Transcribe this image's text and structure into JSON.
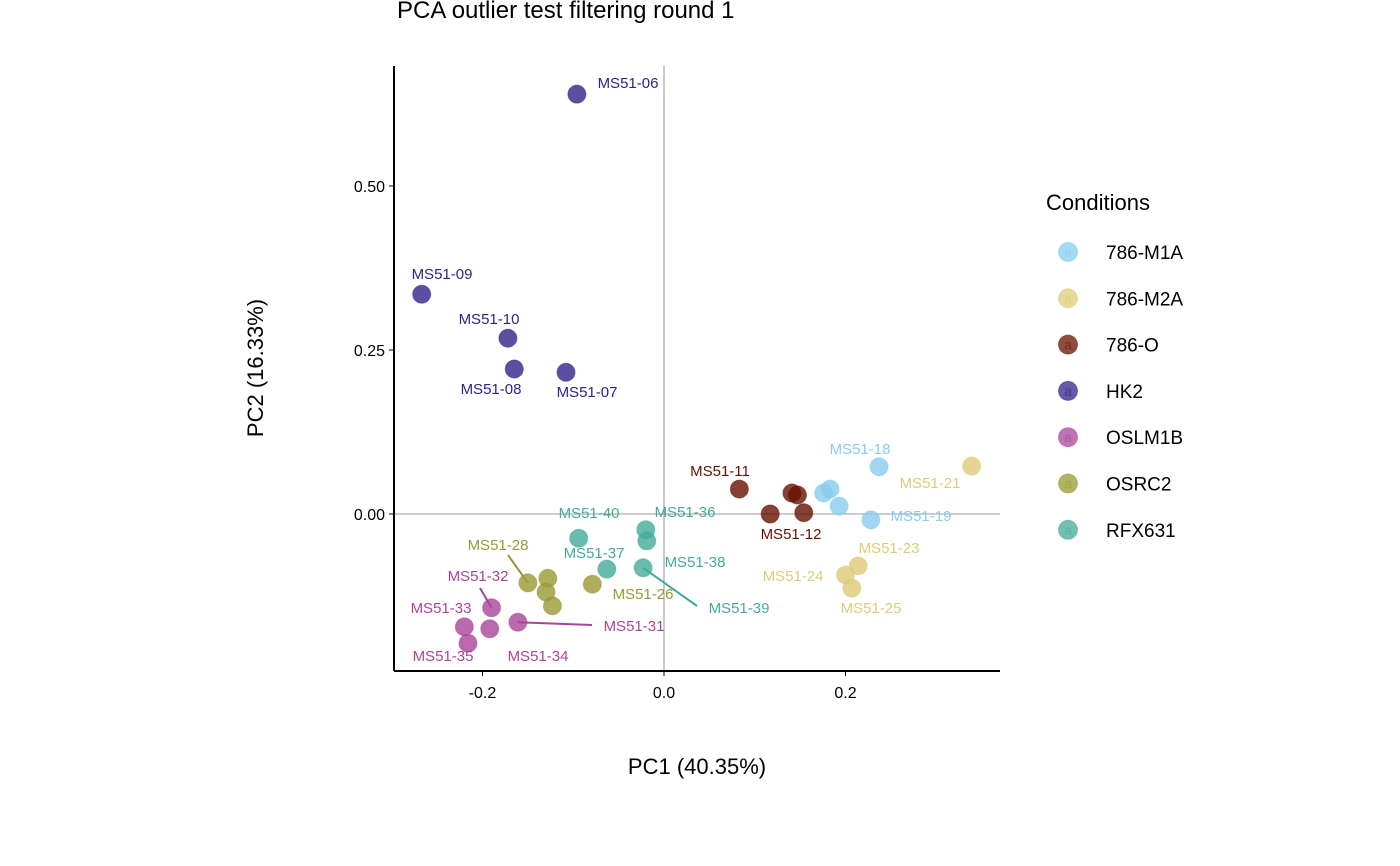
{
  "chart_data": {
    "type": "scatter",
    "title": "PCA outlier test filtering round 1",
    "xlabel": "PC1 (40.35%)",
    "ylabel": "PC2 (16.33%)",
    "xlim": [
      -0.297,
      0.37
    ],
    "ylim": [
      -0.245,
      0.68
    ],
    "xticks": [
      -0.2,
      0.0,
      0.2
    ],
    "xtick_labels": [
      "-0.2",
      "0.0",
      "0.2"
    ],
    "yticks": [
      0.0,
      0.25,
      0.5
    ],
    "ytick_labels": [
      "0.00",
      "0.25",
      "0.50"
    ],
    "grid": false,
    "reference_lines": {
      "x": 0,
      "y": 0
    },
    "legend": {
      "title": "Conditions",
      "placement": "right",
      "key_glyph": "a",
      "entries": [
        {
          "name": "786-M1A",
          "color": "#88CCEE"
        },
        {
          "name": "786-M2A",
          "color": "#DDCC77"
        },
        {
          "name": "786-O",
          "color": "#661100"
        },
        {
          "name": "HK2",
          "color": "#332288"
        },
        {
          "name": "OSLM1B",
          "color": "#AA4499"
        },
        {
          "name": "OSRC2",
          "color": "#999933"
        },
        {
          "name": "RFX631",
          "color": "#44AA99"
        }
      ]
    },
    "points": [
      {
        "sample": "MS51-06",
        "group": "HK2",
        "x": -0.096,
        "y": 0.64
      },
      {
        "sample": "MS51-09",
        "group": "HK2",
        "x": -0.267,
        "y": 0.335
      },
      {
        "sample": "MS51-10",
        "group": "HK2",
        "x": -0.172,
        "y": 0.268
      },
      {
        "sample": "MS51-08",
        "group": "HK2",
        "x": -0.165,
        "y": 0.221
      },
      {
        "sample": "MS51-07",
        "group": "HK2",
        "x": -0.108,
        "y": 0.216
      },
      {
        "sample": "MS51-11",
        "group": "786-O",
        "x": 0.083,
        "y": 0.038
      },
      {
        "sample": "",
        "group": "786-O",
        "x": 0.141,
        "y": 0.032
      },
      {
        "sample": "",
        "group": "786-O",
        "x": 0.147,
        "y": 0.029
      },
      {
        "sample": "MS51-12",
        "group": "786-O",
        "x": 0.117,
        "y": 0.0
      },
      {
        "sample": "",
        "group": "786-O",
        "x": 0.154,
        "y": 0.002
      },
      {
        "sample": "",
        "group": "786-M1A",
        "x": 0.176,
        "y": 0.032
      },
      {
        "sample": "",
        "group": "786-M1A",
        "x": 0.183,
        "y": 0.038
      },
      {
        "sample": "",
        "group": "786-M1A",
        "x": 0.193,
        "y": 0.012
      },
      {
        "sample": "MS51-18",
        "group": "786-M1A",
        "x": 0.237,
        "y": 0.072
      },
      {
        "sample": "MS51-19",
        "group": "786-M1A",
        "x": 0.228,
        "y": -0.009
      },
      {
        "sample": "MS51-21",
        "group": "786-M2A",
        "x": 0.339,
        "y": 0.073
      },
      {
        "sample": "MS51-23",
        "group": "786-M2A",
        "x": 0.214,
        "y": -0.079
      },
      {
        "sample": "MS51-24",
        "group": "786-M2A",
        "x": 0.2,
        "y": -0.093
      },
      {
        "sample": "MS51-25",
        "group": "786-M2A",
        "x": 0.207,
        "y": -0.113
      },
      {
        "sample": "MS51-36",
        "group": "RFX631",
        "x": -0.02,
        "y": -0.024
      },
      {
        "sample": "MS51-38",
        "group": "RFX631",
        "x": -0.019,
        "y": -0.041
      },
      {
        "sample": "MS51-40",
        "group": "RFX631",
        "x": -0.094,
        "y": -0.037
      },
      {
        "sample": "MS51-37",
        "group": "RFX631",
        "x": -0.063,
        "y": -0.084
      },
      {
        "sample": "MS51-39",
        "group": "RFX631",
        "x": -0.023,
        "y": -0.082
      },
      {
        "sample": "MS51-28",
        "group": "OSRC2",
        "x": -0.15,
        "y": -0.105
      },
      {
        "sample": "",
        "group": "OSRC2",
        "x": -0.128,
        "y": -0.098
      },
      {
        "sample": "",
        "group": "OSRC2",
        "x": -0.13,
        "y": -0.119
      },
      {
        "sample": "",
        "group": "OSRC2",
        "x": -0.123,
        "y": -0.14
      },
      {
        "sample": "MS51-26",
        "group": "OSRC2",
        "x": -0.079,
        "y": -0.107
      },
      {
        "sample": "MS51-32",
        "group": "OSLM1B",
        "x": -0.19,
        "y": -0.143
      },
      {
        "sample": "MS51-33",
        "group": "OSLM1B",
        "x": -0.22,
        "y": -0.172
      },
      {
        "sample": "MS51-34",
        "group": "OSLM1B",
        "x": -0.192,
        "y": -0.175
      },
      {
        "sample": "MS51-35",
        "group": "OSLM1B",
        "x": -0.216,
        "y": -0.197
      },
      {
        "sample": "MS51-31",
        "group": "OSLM1B",
        "x": -0.161,
        "y": -0.165
      }
    ]
  }
}
